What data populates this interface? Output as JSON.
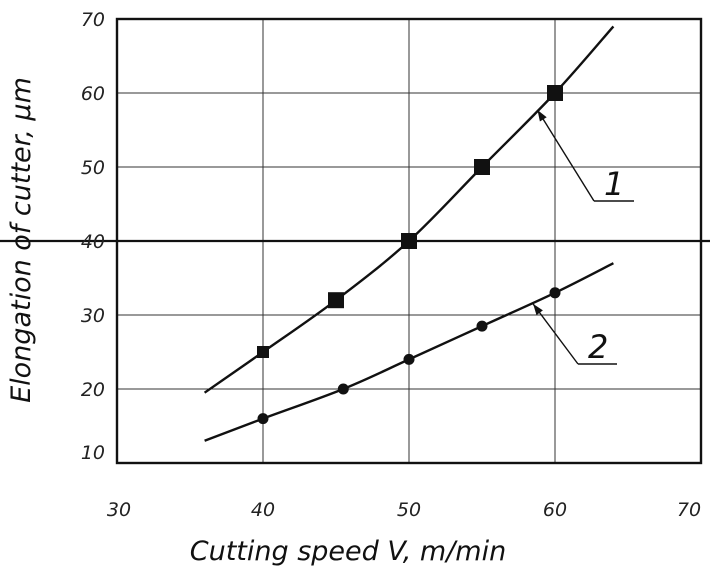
{
  "chart_data": {
    "type": "line",
    "title": "",
    "xlabel": "Cutting speed V, m/min",
    "ylabel": "Elongation of cutter, μm",
    "xlim": [
      30,
      70
    ],
    "ylim": [
      10,
      70
    ],
    "xticks": [
      "30",
      "40",
      "50",
      "60",
      "70"
    ],
    "yticks": [
      "10",
      "20",
      "30",
      "40",
      "50",
      "60",
      "70"
    ],
    "grid": true,
    "reference_line_y": 40,
    "series": [
      {
        "name": "1",
        "marker": "square",
        "points": [
          {
            "x": 40,
            "y": 25
          },
          {
            "x": 45,
            "y": 32
          },
          {
            "x": 50,
            "y": 40
          },
          {
            "x": 55,
            "y": 50
          },
          {
            "x": 60,
            "y": 60
          }
        ],
        "curve": [
          {
            "x": 36,
            "y": 19.5
          },
          {
            "x": 40,
            "y": 25
          },
          {
            "x": 45,
            "y": 32
          },
          {
            "x": 50,
            "y": 40
          },
          {
            "x": 55,
            "y": 50
          },
          {
            "x": 60,
            "y": 60
          },
          {
            "x": 64,
            "y": 69
          }
        ]
      },
      {
        "name": "2",
        "marker": "circle",
        "points": [
          {
            "x": 40,
            "y": 16
          },
          {
            "x": 45.5,
            "y": 20
          },
          {
            "x": 50,
            "y": 24
          },
          {
            "x": 55,
            "y": 28.5
          },
          {
            "x": 60,
            "y": 33
          }
        ],
        "curve": [
          {
            "x": 36,
            "y": 13
          },
          {
            "x": 40,
            "y": 16
          },
          {
            "x": 45.5,
            "y": 20
          },
          {
            "x": 50,
            "y": 24
          },
          {
            "x": 55,
            "y": 28.5
          },
          {
            "x": 60,
            "y": 33
          },
          {
            "x": 64,
            "y": 37
          }
        ]
      }
    ],
    "annotations": [
      {
        "label": "1",
        "target_series": "1"
      },
      {
        "label": "2",
        "target_series": "2"
      }
    ]
  }
}
